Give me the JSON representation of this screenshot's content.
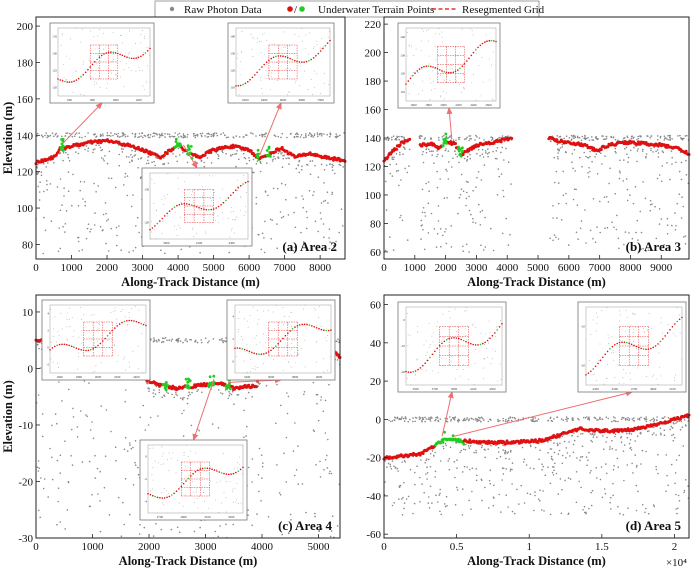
{
  "legend": {
    "raw": "Raw Photon Data",
    "terrain": "Underwater Terrain Points",
    "grid": "Resegmented Grid",
    "raw_color": "#888888",
    "terrain_color": "#e01010",
    "terrain_alt_color": "#22cc22",
    "grid_color": "#e83030",
    "terrain_marker_label": "/"
  },
  "chart_data": [
    {
      "type": "scatter",
      "title": "(a) Area 2",
      "xlabel": "Along-Track Distance (m)",
      "ylabel": "Elevation (m)",
      "xlim": [
        0,
        8700
      ],
      "ylim": [
        72,
        205
      ],
      "xticks": [
        "0",
        "1000",
        "2000",
        "3000",
        "4000",
        "5000",
        "6000",
        "7000",
        "8000"
      ],
      "xtick_values": [
        0,
        1000,
        2000,
        3000,
        4000,
        5000,
        6000,
        7000,
        8000
      ],
      "yticks": [
        "80",
        "100",
        "120",
        "140",
        "160",
        "180",
        "200"
      ],
      "ytick_values": [
        80,
        100,
        120,
        140,
        160,
        180,
        200
      ],
      "surface_elevation": 140,
      "terrain_profile": [
        [
          0,
          125
        ],
        [
          500,
          128
        ],
        [
          700,
          133
        ],
        [
          1000,
          134
        ],
        [
          1500,
          136
        ],
        [
          2000,
          137
        ],
        [
          2500,
          135
        ],
        [
          3000,
          132
        ],
        [
          3500,
          128
        ],
        [
          3800,
          132
        ],
        [
          4000,
          135
        ],
        [
          4300,
          130
        ],
        [
          4600,
          128
        ],
        [
          5000,
          132
        ],
        [
          5500,
          134
        ],
        [
          6000,
          132
        ],
        [
          6300,
          127
        ],
        [
          6600,
          130
        ],
        [
          6900,
          133
        ],
        [
          7300,
          128
        ],
        [
          7700,
          130
        ],
        [
          8100,
          128
        ],
        [
          8700,
          126
        ]
      ],
      "green_segments": [
        [
          700,
          800
        ],
        [
          3900,
          4100
        ],
        [
          4250,
          4400
        ],
        [
          6200,
          6300
        ],
        [
          6500,
          6600
        ]
      ],
      "cloud_range": [
        75,
        140
      ]
    },
    {
      "type": "scatter",
      "title": "(b) Area 3",
      "xlabel": "Along-Track Distance (m)",
      "ylabel": "",
      "xlim": [
        0,
        9900
      ],
      "ylim": [
        55,
        225
      ],
      "xticks": [
        "0",
        "1000",
        "2000",
        "3000",
        "4000",
        "5000",
        "6000",
        "7000",
        "8000",
        "9000"
      ],
      "xtick_values": [
        0,
        1000,
        2000,
        3000,
        4000,
        5000,
        6000,
        7000,
        8000,
        9000
      ],
      "yticks": [
        "60",
        "80",
        "100",
        "120",
        "140",
        "160",
        "180",
        "200",
        "220"
      ],
      "ytick_values": [
        60,
        80,
        100,
        120,
        140,
        160,
        180,
        200,
        220
      ],
      "surface_elevation": 140,
      "terrain_profile": [
        [
          0,
          124
        ],
        [
          300,
          131
        ],
        [
          600,
          137
        ],
        [
          850,
          139
        ],
        [
          1000,
          137
        ],
        [
          1200,
          135
        ],
        [
          1500,
          136
        ],
        [
          1800,
          133
        ],
        [
          2000,
          137
        ],
        [
          2300,
          136
        ],
        [
          2500,
          128
        ],
        [
          2700,
          131
        ],
        [
          3000,
          135
        ],
        [
          3500,
          137
        ],
        [
          4000,
          139
        ],
        [
          4100,
          140
        ],
        [
          5400,
          140
        ],
        [
          5600,
          138
        ],
        [
          6000,
          137
        ],
        [
          6500,
          135
        ],
        [
          6900,
          131
        ],
        [
          7300,
          135
        ],
        [
          7800,
          137
        ],
        [
          8500,
          136
        ],
        [
          9000,
          135
        ],
        [
          9500,
          133
        ],
        [
          9900,
          129
        ]
      ],
      "gaps": [
        [
          850,
          1150
        ],
        [
          4150,
          5350
        ]
      ],
      "green_segments": [
        [
          1900,
          2050
        ],
        [
          2400,
          2550
        ]
      ],
      "cloud_range": [
        60,
        140
      ]
    },
    {
      "type": "scatter",
      "title": "(c) Area 4",
      "xlabel": "Along-Track Distance (m)",
      "ylabel": "Elevation (m)",
      "xlim": [
        0,
        5380
      ],
      "ylim": [
        -30,
        13
      ],
      "xticks": [
        "0",
        "1000",
        "2000",
        "3000",
        "4000",
        "5000"
      ],
      "xtick_values": [
        0,
        1000,
        2000,
        3000,
        4000,
        5000
      ],
      "yticks": [
        "-30",
        "-20",
        "-10",
        "0",
        "10"
      ],
      "ytick_values": [
        -30,
        -20,
        -10,
        0,
        10
      ],
      "surface_elevation": 5,
      "terrain_profile": [
        [
          0,
          5
        ],
        [
          1700,
          5
        ],
        [
          1800,
          1
        ],
        [
          1950,
          -2
        ],
        [
          2200,
          -3
        ],
        [
          2500,
          -3.5
        ],
        [
          2900,
          -3
        ],
        [
          3200,
          -2.5
        ],
        [
          3500,
          -3.5
        ],
        [
          3900,
          -3
        ],
        [
          4100,
          4
        ],
        [
          4500,
          4.5
        ],
        [
          5100,
          5
        ],
        [
          5380,
          2
        ]
      ],
      "green_segments": [
        [
          1850,
          1950
        ],
        [
          2250,
          2350
        ],
        [
          2650,
          2750
        ],
        [
          3050,
          3150
        ],
        [
          3350,
          3450
        ]
      ],
      "cloud_range": [
        -30,
        5
      ]
    },
    {
      "type": "scatter",
      "title": "(d) Area 5",
      "xlabel": "Along-Track Distance (m)",
      "ylabel": "",
      "xlim": [
        0,
        21000
      ],
      "ylim": [
        -62,
        65
      ],
      "xticks": [
        "0",
        "0.5",
        "1",
        "1.5",
        "2"
      ],
      "xtick_values": [
        0,
        5000,
        10000,
        15000,
        20000
      ],
      "x_multiplier": "×10⁴",
      "yticks": [
        "-60",
        "-40",
        "-20",
        "0",
        "20",
        "40",
        "60"
      ],
      "ytick_values": [
        -60,
        -40,
        -20,
        0,
        20,
        40,
        60
      ],
      "surface_elevation": 0,
      "terrain_profile": [
        [
          0,
          -20
        ],
        [
          1500,
          -19
        ],
        [
          2500,
          -18
        ],
        [
          3500,
          -14
        ],
        [
          4000,
          -11
        ],
        [
          5000,
          -11
        ],
        [
          7000,
          -12
        ],
        [
          9000,
          -12
        ],
        [
          11000,
          -11
        ],
        [
          12500,
          -7
        ],
        [
          13500,
          -5
        ],
        [
          15000,
          -6
        ],
        [
          16500,
          -6
        ],
        [
          18000,
          -4
        ],
        [
          20000,
          0
        ],
        [
          21000,
          2
        ]
      ],
      "green_segments": [
        [
          3500,
          5500
        ]
      ],
      "cloud_range": [
        -50,
        2
      ]
    }
  ],
  "insets": [
    {
      "panel": 0,
      "xticks": [
        "600",
        "800",
        "1000",
        "1200"
      ],
      "yticks": [
        "120",
        "125",
        "130",
        "135"
      ]
    },
    {
      "panel": 0,
      "xticks": [
        "6200",
        "6400",
        "6600",
        "6800",
        "7000"
      ],
      "yticks": [
        "110",
        "120",
        "130",
        "140"
      ]
    },
    {
      "panel": 0,
      "xticks": [
        "3900",
        "4100",
        "4300"
      ],
      "yticks": [
        "120",
        "130"
      ]
    },
    {
      "panel": 1,
      "xticks": [
        "1600",
        "1800",
        "2000",
        "2200",
        "2400",
        "2600"
      ],
      "yticks": [
        "110",
        "120",
        "130",
        "140"
      ]
    },
    {
      "panel": 2,
      "xticks": [
        "1600",
        "1800",
        "2000",
        "2200",
        "2400"
      ],
      "yticks": [
        "-2",
        "0",
        "2",
        "4"
      ]
    },
    {
      "panel": 2,
      "xticks": [
        "3400",
        "3600",
        "3800",
        "4000"
      ],
      "yticks": [
        "0",
        "2",
        "4"
      ]
    },
    {
      "panel": 2,
      "xticks": [
        "2700",
        "2900",
        "3100",
        "3300"
      ],
      "yticks": [
        "-4",
        "-2",
        "0"
      ]
    },
    {
      "panel": 3,
      "xticks": [
        "3500",
        "3700",
        "3900",
        "4100",
        "4300"
      ],
      "yticks": [
        "-20",
        "-10",
        "0"
      ]
    },
    {
      "panel": 3,
      "xticks": [
        "4300",
        "4500",
        "4700",
        "4900",
        "5100"
      ],
      "yticks": [
        "-20",
        "-10"
      ]
    }
  ]
}
